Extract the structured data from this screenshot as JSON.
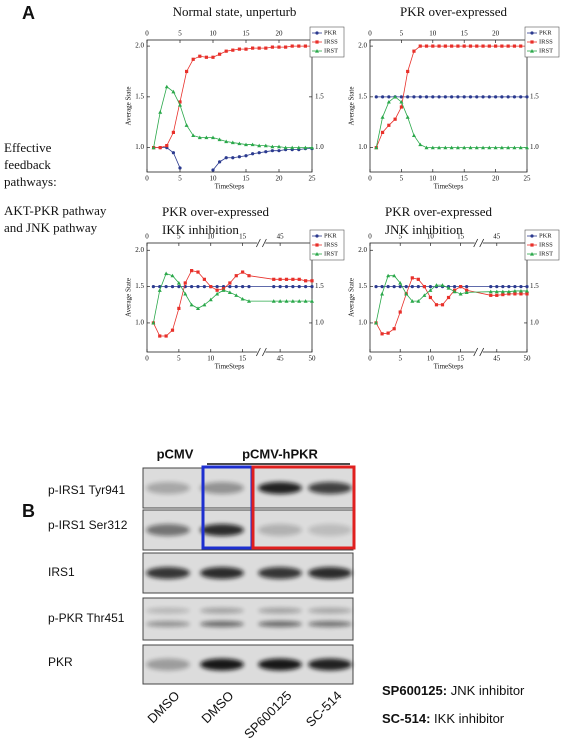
{
  "panel_labels": [
    "A",
    "B"
  ],
  "side_text": [
    "Effective",
    "feedback",
    "pathways:",
    "AKT-PKR pathway",
    "and JNK pathway"
  ],
  "chart_data": [
    {
      "type": "line",
      "title": [
        "Normal state, unperturb"
      ],
      "xlabel": "TimeSteps",
      "ylabel": "Average State",
      "x": [
        1,
        2,
        3,
        4,
        5,
        6,
        7,
        8,
        9,
        10,
        11,
        12,
        13,
        14,
        15,
        16,
        17,
        18,
        19,
        20,
        21,
        22,
        23,
        24,
        25
      ],
      "xlim": [
        0,
        25
      ],
      "xticks": [
        0,
        5,
        10,
        15,
        20,
        25
      ],
      "x2ticks": [
        0,
        5,
        10,
        15,
        20
      ],
      "ylim": [
        0.76,
        2.06
      ],
      "yticks": [
        {
          "value": 1,
          "label": "1.0"
        },
        {
          "value": 1.5,
          "label": "1.5"
        },
        {
          "value": 2,
          "label": "2.0"
        }
      ],
      "y2ticks": [
        {
          "value": 1,
          "label": "1.0"
        },
        {
          "value": 1.5,
          "label": "1.5"
        }
      ],
      "legend": "upper right",
      "series": [
        {
          "name": "PKR",
          "color": "#2b3a8f",
          "marker": "circle",
          "values": [
            1.0,
            1.0,
            1.0,
            0.95,
            0.8,
            null,
            null,
            null,
            null,
            0.78,
            0.86,
            0.9,
            0.9,
            0.91,
            0.92,
            0.94,
            0.95,
            0.96,
            0.97,
            0.97,
            0.98,
            0.98,
            0.98,
            0.99,
            0.99
          ]
        },
        {
          "name": "IRSS",
          "color": "#e8302a",
          "marker": "square",
          "values": [
            1.0,
            1.0,
            1.02,
            1.15,
            1.45,
            1.75,
            1.87,
            1.9,
            1.89,
            1.89,
            1.92,
            1.95,
            1.96,
            1.97,
            1.97,
            1.98,
            1.98,
            1.98,
            1.99,
            1.99,
            1.99,
            2.0,
            2.0,
            2.0,
            2.0
          ]
        },
        {
          "name": "IRST",
          "color": "#2aa84a",
          "marker": "triangle",
          "values": [
            1.0,
            1.35,
            1.6,
            1.55,
            1.42,
            1.22,
            1.12,
            1.1,
            1.1,
            1.1,
            1.08,
            1.06,
            1.05,
            1.04,
            1.03,
            1.03,
            1.02,
            1.02,
            1.01,
            1.01,
            1.0,
            1.0,
            1.0,
            1.0,
            1.0
          ]
        }
      ]
    },
    {
      "type": "line",
      "title": [
        "PKR over-expressed"
      ],
      "xlabel": "TimeSteps",
      "ylabel": "Average State",
      "x": [
        1,
        2,
        3,
        4,
        5,
        6,
        7,
        8,
        9,
        10,
        11,
        12,
        13,
        14,
        15,
        16,
        17,
        18,
        19,
        20,
        21,
        22,
        23,
        24,
        25
      ],
      "xlim": [
        0,
        25
      ],
      "xticks": [
        0,
        5,
        10,
        15,
        20,
        25
      ],
      "x2ticks": [
        0,
        5,
        10,
        15,
        20
      ],
      "ylim": [
        0.76,
        2.06
      ],
      "yticks": [
        {
          "value": 1,
          "label": "1.0"
        },
        {
          "value": 1.5,
          "label": "1.5"
        },
        {
          "value": 2,
          "label": "2.0"
        }
      ],
      "y2ticks": [
        {
          "value": 1,
          "label": "1.0"
        },
        {
          "value": 1.5,
          "label": "1.5"
        }
      ],
      "legend": "upper right",
      "series": [
        {
          "name": "PKR",
          "color": "#2b3a8f",
          "marker": "circle",
          "values": [
            1.5,
            1.5,
            1.5,
            1.5,
            1.5,
            1.5,
            1.5,
            1.5,
            1.5,
            1.5,
            1.5,
            1.5,
            1.5,
            1.5,
            1.5,
            1.5,
            1.5,
            1.5,
            1.5,
            1.5,
            1.5,
            1.5,
            1.5,
            1.5,
            1.5
          ]
        },
        {
          "name": "IRSS",
          "color": "#e8302a",
          "marker": "square",
          "values": [
            1.0,
            1.15,
            1.22,
            1.28,
            1.4,
            1.75,
            1.95,
            2.0,
            2.0,
            2.0,
            2.0,
            2.0,
            2.0,
            2.0,
            2.0,
            2.0,
            2.0,
            2.0,
            2.0,
            2.0,
            2.0,
            2.0,
            2.0,
            2.0,
            2.0
          ]
        },
        {
          "name": "IRST",
          "color": "#2aa84a",
          "marker": "triangle",
          "values": [
            1.0,
            1.3,
            1.45,
            1.5,
            1.45,
            1.3,
            1.12,
            1.03,
            1.0,
            1.0,
            1.0,
            1.0,
            1.0,
            1.0,
            1.0,
            1.0,
            1.0,
            1.0,
            1.0,
            1.0,
            1.0,
            1.0,
            1.0,
            1.0,
            1.0
          ]
        }
      ]
    },
    {
      "type": "line",
      "title": [
        "PKR over-expressed",
        "IKK inhibition"
      ],
      "xlabel": "TimeSteps",
      "ylabel": "Average State",
      "x": [
        1,
        2,
        3,
        4,
        5,
        6,
        7,
        8,
        9,
        10,
        11,
        12,
        13,
        14,
        15,
        16,
        44,
        45,
        46,
        47,
        48,
        49,
        50
      ],
      "xlim": [
        0,
        50
      ],
      "xbreak": [
        17,
        43
      ],
      "xticks": [
        0,
        5,
        10,
        15,
        45,
        50
      ],
      "x2ticks": [
        0,
        5,
        10,
        15,
        45
      ],
      "ylim": [
        0.6,
        2.1
      ],
      "yticks": [
        {
          "value": 1,
          "label": "1.0"
        },
        {
          "value": 1.5,
          "label": "1.5"
        },
        {
          "value": 2,
          "label": "2.0"
        }
      ],
      "y2ticks": [
        {
          "value": 1,
          "label": "1.0"
        },
        {
          "value": 1.5,
          "label": "1.5"
        }
      ],
      "legend": "upper right",
      "series": [
        {
          "name": "PKR",
          "color": "#2b3a8f",
          "marker": "circle",
          "values": [
            1.5,
            1.5,
            1.5,
            1.5,
            1.5,
            1.5,
            1.5,
            1.5,
            1.5,
            1.5,
            1.5,
            1.5,
            1.5,
            1.5,
            1.5,
            1.5,
            1.5,
            1.5,
            1.5,
            1.5,
            1.5,
            1.5,
            1.5
          ]
        },
        {
          "name": "IRSS",
          "color": "#e8302a",
          "marker": "square",
          "values": [
            1.0,
            0.82,
            0.82,
            0.9,
            1.2,
            1.55,
            1.72,
            1.7,
            1.6,
            1.5,
            1.45,
            1.47,
            1.55,
            1.65,
            1.7,
            1.65,
            1.6,
            1.6,
            1.6,
            1.6,
            1.6,
            1.58,
            1.58
          ]
        },
        {
          "name": "IRST",
          "color": "#2aa84a",
          "marker": "triangle",
          "values": [
            1.0,
            1.45,
            1.68,
            1.65,
            1.55,
            1.4,
            1.25,
            1.2,
            1.25,
            1.32,
            1.4,
            1.45,
            1.42,
            1.38,
            1.33,
            1.3,
            1.3,
            1.3,
            1.3,
            1.3,
            1.3,
            1.3,
            1.3
          ]
        }
      ]
    },
    {
      "type": "line",
      "title": [
        "PKR over-expressed",
        "JNK inhibition"
      ],
      "xlabel": "TimeSteps",
      "ylabel": "Average State",
      "x": [
        1,
        2,
        3,
        4,
        5,
        6,
        7,
        8,
        9,
        10,
        11,
        12,
        13,
        14,
        15,
        16,
        44,
        45,
        46,
        47,
        48,
        49,
        50
      ],
      "xlim": [
        0,
        50
      ],
      "xbreak": [
        17,
        43
      ],
      "xticks": [
        0,
        5,
        10,
        15,
        45,
        50
      ],
      "x2ticks": [
        0,
        5,
        10,
        15,
        45
      ],
      "ylim": [
        0.6,
        2.1
      ],
      "yticks": [
        {
          "value": 1,
          "label": "1.0"
        },
        {
          "value": 1.5,
          "label": "1.5"
        },
        {
          "value": 2,
          "label": "2.0"
        }
      ],
      "y2ticks": [
        {
          "value": 1,
          "label": "1.0"
        },
        {
          "value": 1.5,
          "label": "1.5"
        }
      ],
      "legend": "upper right",
      "series": [
        {
          "name": "PKR",
          "color": "#2b3a8f",
          "marker": "circle",
          "values": [
            1.5,
            1.5,
            1.5,
            1.5,
            1.5,
            1.5,
            1.5,
            1.5,
            1.5,
            1.5,
            1.5,
            1.5,
            1.5,
            1.5,
            1.5,
            1.5,
            1.5,
            1.5,
            1.5,
            1.5,
            1.5,
            1.5,
            1.5
          ]
        },
        {
          "name": "IRSS",
          "color": "#e8302a",
          "marker": "square",
          "values": [
            1.0,
            0.85,
            0.86,
            0.92,
            1.15,
            1.4,
            1.62,
            1.6,
            1.5,
            1.35,
            1.25,
            1.25,
            1.35,
            1.45,
            1.5,
            1.45,
            1.38,
            1.38,
            1.39,
            1.4,
            1.4,
            1.4,
            1.4
          ]
        },
        {
          "name": "IRST",
          "color": "#2aa84a",
          "marker": "triangle",
          "values": [
            1.0,
            1.4,
            1.65,
            1.65,
            1.55,
            1.4,
            1.3,
            1.3,
            1.38,
            1.45,
            1.52,
            1.52,
            1.48,
            1.43,
            1.4,
            1.42,
            1.43,
            1.43,
            1.43,
            1.43,
            1.44,
            1.44,
            1.44
          ]
        }
      ]
    }
  ],
  "blot": {
    "groups": [
      "pCMV",
      "pCMV-hPKR"
    ],
    "rows": [
      "p-IRS1 Tyr941",
      "p-IRS1 Ser312",
      "IRS1",
      "p-PKR Thr451",
      "PKR"
    ],
    "lanes": [
      "DMSO",
      "DMSO",
      "SP600125",
      "SC-514"
    ],
    "notes": [
      {
        "name": "SP600125:",
        "text": "JNK inhibitor"
      },
      {
        "name": "SC-514:",
        "text": "IKK inhibitor"
      }
    ]
  }
}
